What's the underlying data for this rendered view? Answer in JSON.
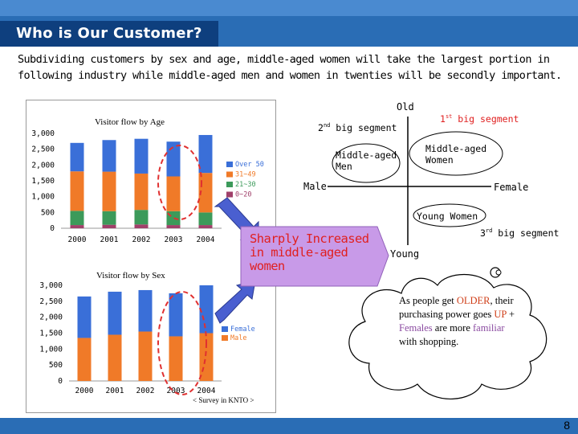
{
  "header": {
    "title": "Who is Our Customer?"
  },
  "intro": {
    "text": "Subdividing customers by sex and age, middle-aged women will take the largest portion in following industry while middle-aged men and women in twenties will be secondly important."
  },
  "colors": {
    "over50": "#3a6fd8",
    "a31_49": "#f07a28",
    "a21_30": "#3c9a5a",
    "a0_20": "#a0406a",
    "female": "#3a6fd8",
    "male": "#f07a28",
    "callout": "#c89ae8"
  },
  "chart_data": [
    {
      "type": "bar",
      "title": "Visitor flow by Age",
      "categories": [
        "2000",
        "2001",
        "2002",
        "2003",
        "2004"
      ],
      "series": [
        {
          "name": "0~20",
          "values": [
            100,
            110,
            120,
            100,
            100
          ]
        },
        {
          "name": "21~30",
          "values": [
            450,
            430,
            460,
            440,
            400
          ]
        },
        {
          "name": "31~49",
          "values": [
            1250,
            1250,
            1150,
            1100,
            1250
          ]
        },
        {
          "name": "Over 50",
          "values": [
            900,
            1000,
            1100,
            1100,
            1200
          ]
        }
      ],
      "stacked": true,
      "ylim": [
        0,
        3000
      ],
      "yticks": [
        "0",
        "500",
        "1,000",
        "1,500",
        "2,000",
        "2,500",
        "3,000"
      ],
      "legend_position": "right"
    },
    {
      "type": "bar",
      "title": "Visitor flow by Sex",
      "categories": [
        "2000",
        "2001",
        "2002",
        "2003",
        "2004"
      ],
      "series": [
        {
          "name": "Male",
          "values": [
            1350,
            1450,
            1550,
            1400,
            1500
          ]
        },
        {
          "name": "Female",
          "values": [
            1300,
            1350,
            1300,
            1350,
            1500
          ]
        }
      ],
      "stacked": true,
      "ylim": [
        0,
        3000
      ],
      "yticks": [
        "0",
        "500",
        "1,000",
        "1,500",
        "2,000",
        "2,500",
        "3,000"
      ],
      "legend_position": "right"
    }
  ],
  "callout": {
    "text": "Sharply Increased in middle-aged women"
  },
  "source": "< Survey in KNTO >",
  "matrix": {
    "old": "Old",
    "young": "Young",
    "male": "Male",
    "female": "Female",
    "middle_men": "Middle-aged Men",
    "middle_women": "Middle-aged Women",
    "young_women": "Young Women",
    "seg1_num": "1",
    "seg1_sup": "st",
    "seg1_rest": " big segment",
    "seg2_num": "2",
    "seg2_sup": "nd",
    "seg2_rest": " big segment",
    "seg3_num": "3",
    "seg3_sup": "rd",
    "seg3_rest": " big segment"
  },
  "cloud": {
    "p1": "As people get ",
    "older": "OLDER",
    "p2": ", their purchasing power goes ",
    "up": "UP",
    "p3": " + ",
    "females": "Females",
    "p4": " are more ",
    "familiar": "familiar",
    "p5": " with shopping."
  },
  "page_number": "8"
}
